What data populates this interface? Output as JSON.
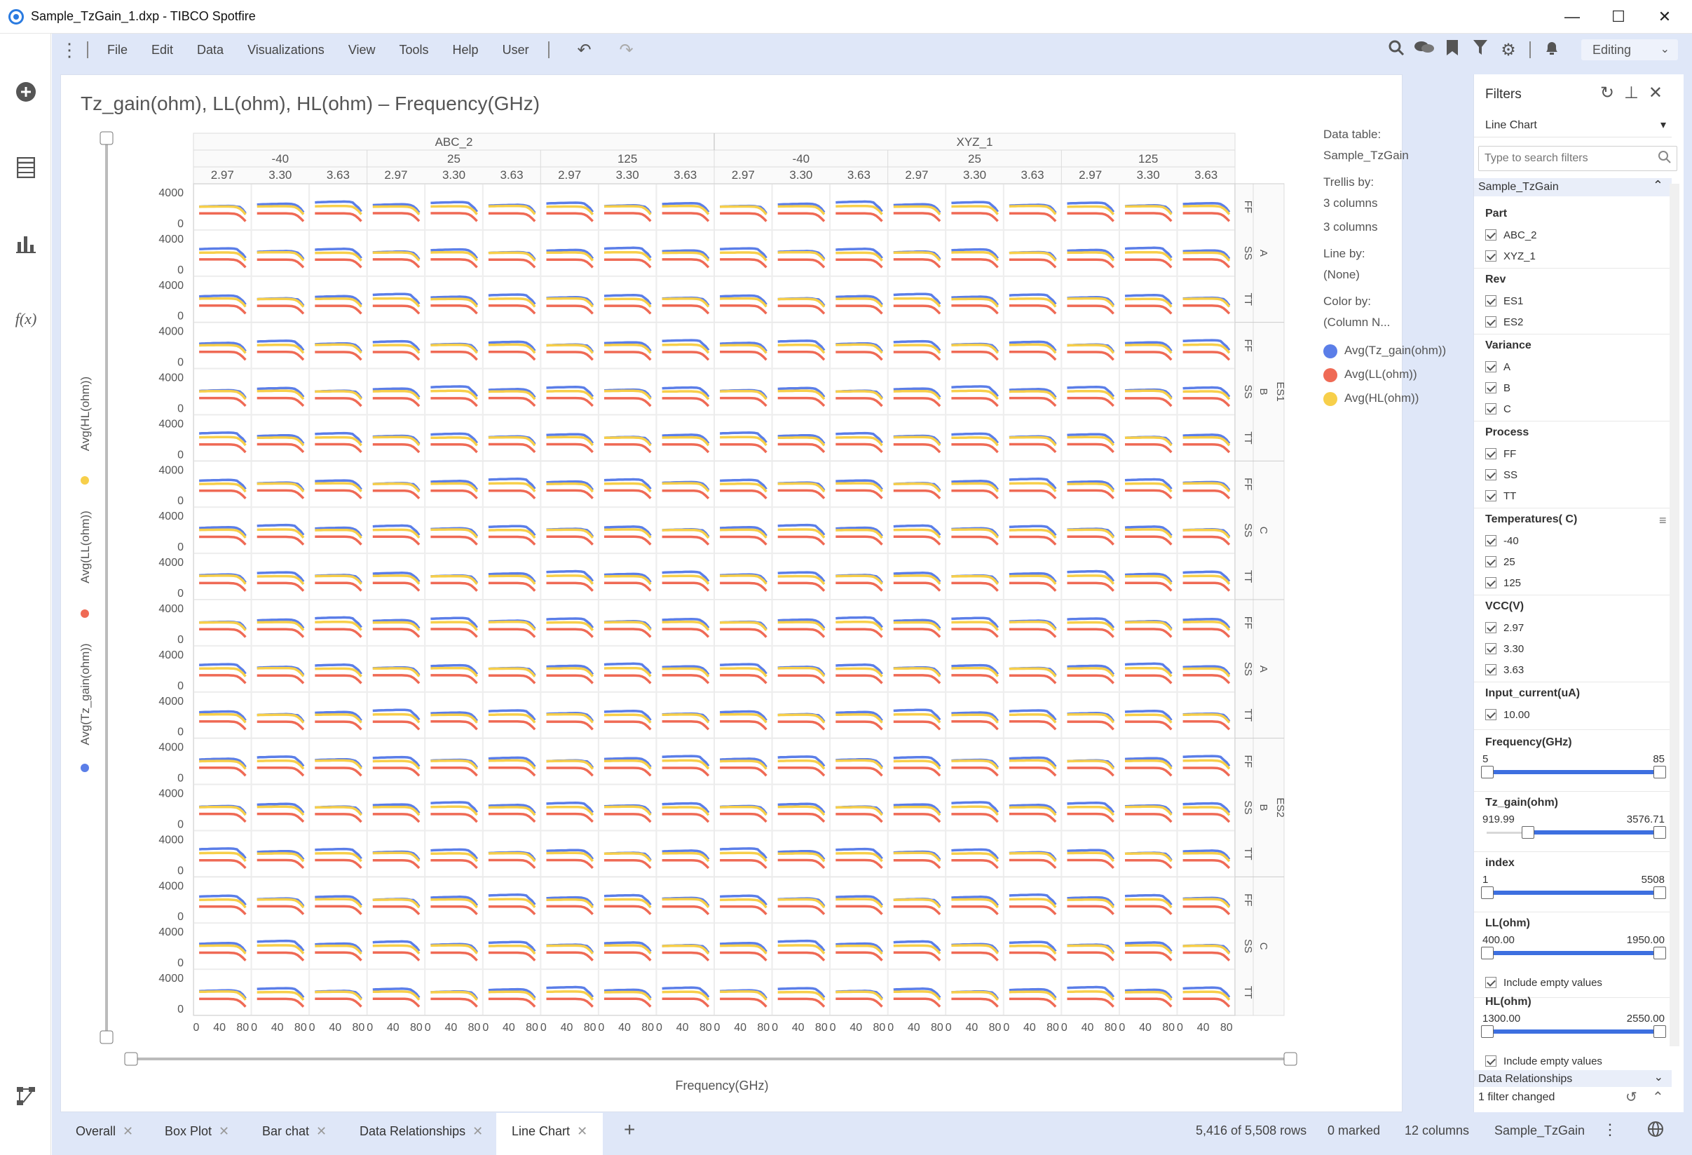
{
  "window": {
    "title": "Sample_TzGain_1.dxp - TIBCO Spotfire",
    "minimize": "—",
    "maximize": "☐",
    "close": "✕"
  },
  "menu": {
    "items": [
      "File",
      "Edit",
      "Data",
      "Visualizations",
      "View",
      "Tools",
      "Help",
      "User"
    ],
    "mode": "Editing"
  },
  "sidebar": {
    "icons": [
      "add-icon",
      "data-table-icon",
      "bar-chart-icon",
      "fx-icon",
      "data-canvas-icon"
    ]
  },
  "viz": {
    "title": "Tz_gain(ohm), LL(ohm), HL(ohm) – Frequency(GHz)",
    "x_axis_label": "Frequency(GHz)",
    "y_axis_labels": [
      "Avg(Tz_gain(ohm))",
      "Avg(LL(ohm))",
      "Avg(HL(ohm))"
    ],
    "parts": [
      "ABC_2",
      "XYZ_1"
    ],
    "temperatures": [
      "-40",
      "25",
      "125"
    ],
    "vcc": [
      "2.97",
      "3.30",
      "3.63"
    ],
    "revs": [
      "ES1",
      "ES2"
    ],
    "variances": [
      "A",
      "B",
      "C"
    ],
    "processes": [
      "FF",
      "SS",
      "TT"
    ],
    "y_ticks": [
      "4000",
      "0"
    ],
    "x_ticks": [
      "0",
      "40",
      "80"
    ]
  },
  "info": {
    "data_table_label": "Data table:",
    "data_table": "Sample_TzGain",
    "trellis_label": "Trellis by:",
    "trellis_1": "3 columns",
    "trellis_2": "3 columns",
    "line_by_label": "Line by:",
    "line_by": "(None)",
    "color_by_label": "Color by:",
    "color_by": "(Column N...",
    "legend": [
      {
        "label": "Avg(Tz_gain(ohm))",
        "color": "#5b7ee8"
      },
      {
        "label": "Avg(LL(ohm))",
        "color": "#ef6a55"
      },
      {
        "label": "Avg(HL(ohm))",
        "color": "#f7cf4a"
      }
    ]
  },
  "chart_data": {
    "type": "line",
    "layout": "trellis",
    "x": [
      5,
      10,
      15,
      20,
      25,
      30,
      35,
      40,
      45,
      50,
      55,
      60,
      65,
      70,
      75,
      80,
      85
    ],
    "xlabel": "Frequency(GHz)",
    "ylim": [
      0,
      4000
    ],
    "series": [
      {
        "name": "Avg(Tz_gain(ohm))",
        "values": [
          2300,
          2320,
          2330,
          2340,
          2350,
          2360,
          2360,
          2370,
          2380,
          2380,
          2390,
          2380,
          2360,
          2300,
          2150,
          1900,
          1500
        ]
      },
      {
        "name": "Avg(LL(ohm))",
        "values": [
          1400,
          1400,
          1400,
          1400,
          1400,
          1400,
          1400,
          1400,
          1400,
          1400,
          1400,
          1390,
          1370,
          1300,
          1150,
          900,
          600
        ]
      },
      {
        "name": "Avg(HL(ohm))",
        "values": [
          2100,
          2110,
          2110,
          2120,
          2120,
          2120,
          2130,
          2130,
          2130,
          2130,
          2130,
          2120,
          2100,
          2050,
          1900,
          1650,
          1300
        ]
      }
    ]
  },
  "filters": {
    "title": "Filters",
    "combo": "Line Chart",
    "search_placeholder": "Type to search filters",
    "table": "Sample_TzGain",
    "part": {
      "label": "Part",
      "options": [
        "ABC_2",
        "XYZ_1"
      ]
    },
    "rev": {
      "label": "Rev",
      "options": [
        "ES1",
        "ES2"
      ]
    },
    "variance": {
      "label": "Variance",
      "options": [
        "A",
        "B",
        "C"
      ]
    },
    "process": {
      "label": "Process",
      "options": [
        "FF",
        "SS",
        "TT"
      ]
    },
    "temperatures": {
      "label": "Temperatures( C)",
      "options": [
        "-40",
        "25",
        "125"
      ]
    },
    "vcc": {
      "label": "VCC(V)",
      "options": [
        "2.97",
        "3.30",
        "3.63"
      ]
    },
    "input_current": {
      "label": "Input_current(uA)",
      "options": [
        "10.00"
      ]
    },
    "frequency": {
      "label": "Frequency(GHz)",
      "min": "5",
      "max": "85"
    },
    "tz_gain": {
      "label": "Tz_gain(ohm)",
      "min": "919.99",
      "max": "3576.71"
    },
    "index": {
      "label": "index",
      "min": "1",
      "max": "5508"
    },
    "ll": {
      "label": "LL(ohm)",
      "min": "400.00",
      "max": "1950.00",
      "empty": "Include empty values"
    },
    "hl": {
      "label": "HL(ohm)",
      "min": "1300.00",
      "max": "2550.00",
      "empty": "Include empty values"
    },
    "data_relationships": "Data Relationships",
    "changed": "1 filter changed"
  },
  "tabs": [
    "Overall",
    "Box Plot",
    "Bar chat",
    "Data Relationships",
    "Line Chart"
  ],
  "status": {
    "rows": "5,416 of 5,508 rows",
    "marked": "0 marked",
    "columns": "12 columns",
    "table": "Sample_TzGain"
  }
}
